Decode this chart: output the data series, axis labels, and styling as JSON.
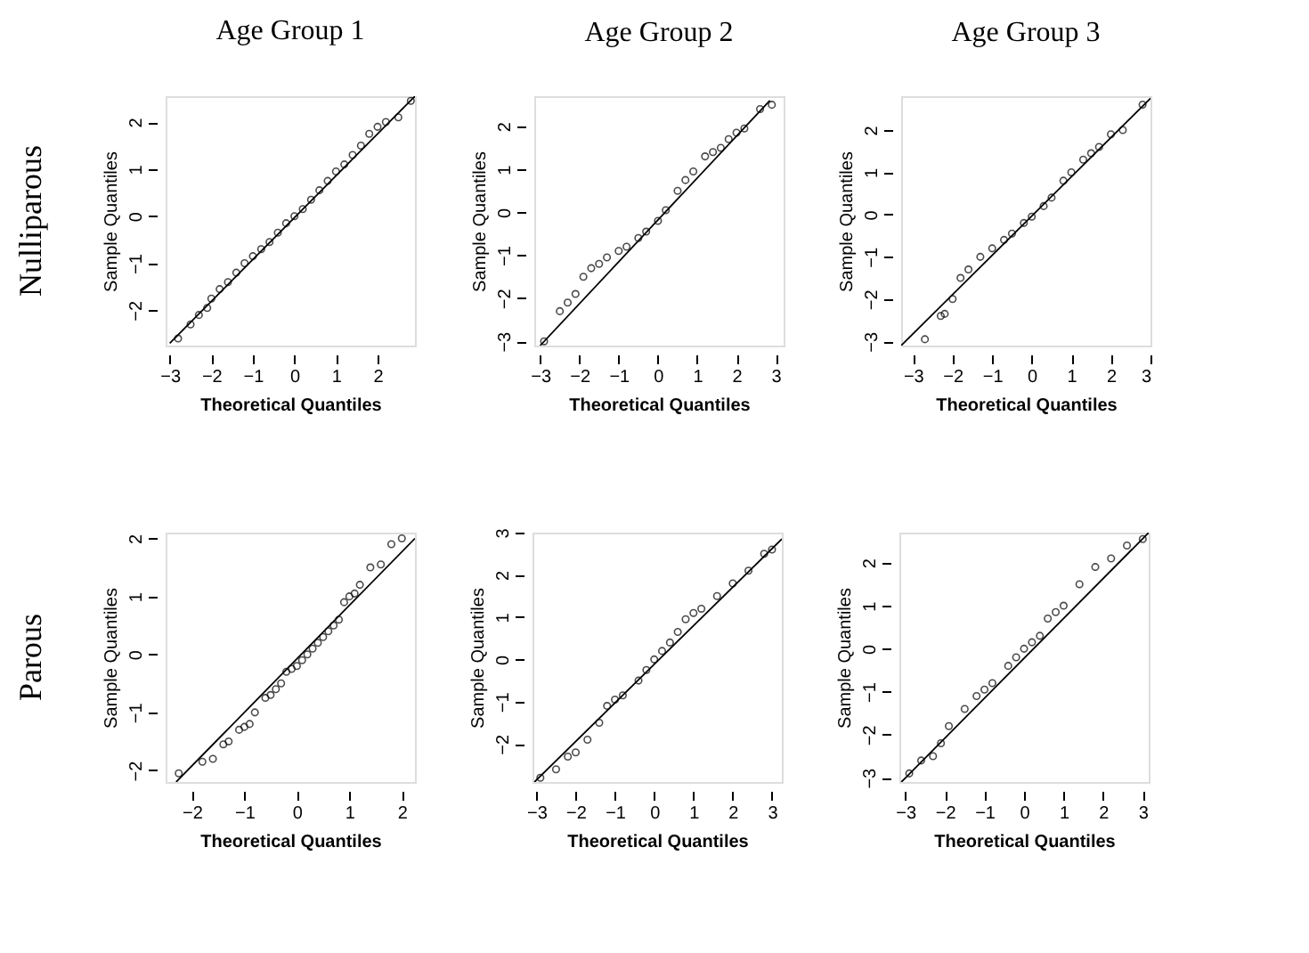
{
  "chart_data": [
    {
      "type": "scatter",
      "title": "Age Group 1",
      "xlabel": "Theoretical Quantiles",
      "ylabel": "Sample Quantiles",
      "annotations": [
        "Nulliparous"
      ],
      "xlim": [
        -3.1,
        2.9
      ],
      "ylim": [
        -2.75,
        2.55
      ],
      "xticks": [
        -3,
        -2,
        -1,
        0,
        1,
        2
      ],
      "yticks": [
        -2,
        -1,
        0,
        1,
        2
      ],
      "grid": false,
      "series": [
        {
          "color": "#000000",
          "marker": "circle",
          "x": [
            -2.8,
            -2.5,
            -2.3,
            -2.1,
            -2.0,
            -1.8,
            -1.6,
            -1.4,
            -1.2,
            -1.0,
            -0.8,
            -0.6,
            -0.4,
            -0.2,
            0.0,
            0.2,
            0.4,
            0.6,
            0.8,
            1.0,
            1.2,
            1.4,
            1.6,
            1.8,
            2.0,
            2.2,
            2.5,
            2.8
          ],
          "values": [
            -2.6,
            -2.3,
            -2.1,
            -1.95,
            -1.75,
            -1.55,
            -1.4,
            -1.2,
            -1.0,
            -0.85,
            -0.7,
            -0.55,
            -0.35,
            -0.15,
            0.0,
            0.15,
            0.35,
            0.55,
            0.75,
            0.95,
            1.1,
            1.3,
            1.5,
            1.75,
            1.9,
            2.0,
            2.1,
            2.45
          ]
        },
        {
          "type": "line",
          "color": "#000000",
          "marker": "none",
          "x": [
            -3.0,
            2.9
          ],
          "values": [
            -2.7,
            2.55
          ]
        }
      ]
    },
    {
      "type": "scatter",
      "title": "Age Group 2",
      "xlabel": "Theoretical Quantiles",
      "ylabel": "Sample Quantiles",
      "xlim": [
        -3.15,
        3.2
      ],
      "ylim": [
        -3.1,
        2.7
      ],
      "xticks": [
        -3,
        -2,
        -1,
        0,
        1,
        2,
        3
      ],
      "yticks": [
        -3,
        -2,
        -1,
        0,
        1,
        2
      ],
      "grid": false,
      "series": [
        {
          "color": "#000000",
          "marker": "circle",
          "x": [
            -2.9,
            -2.5,
            -2.3,
            -2.1,
            -1.9,
            -1.7,
            -1.5,
            -1.3,
            -1.0,
            -0.8,
            -0.5,
            -0.3,
            0.0,
            0.2,
            0.5,
            0.7,
            0.9,
            1.2,
            1.4,
            1.6,
            1.8,
            2.0,
            2.2,
            2.6,
            2.9
          ],
          "values": [
            -3.0,
            -2.3,
            -2.1,
            -1.9,
            -1.5,
            -1.3,
            -1.2,
            -1.05,
            -0.9,
            -0.8,
            -0.6,
            -0.45,
            -0.2,
            0.05,
            0.5,
            0.75,
            0.95,
            1.3,
            1.4,
            1.5,
            1.7,
            1.85,
            1.95,
            2.4,
            2.5
          ]
        },
        {
          "type": "line",
          "color": "#000000",
          "marker": "none",
          "x": [
            -3.0,
            2.85
          ],
          "values": [
            -3.1,
            2.6
          ]
        }
      ]
    },
    {
      "type": "scatter",
      "title": "Age Group 3",
      "xlabel": "Theoretical Quantiles",
      "ylabel": "Sample Quantiles",
      "xlim": [
        -3.3,
        3.0
      ],
      "ylim": [
        -3.1,
        2.8
      ],
      "xticks": [
        -3,
        -2,
        -1,
        0,
        1,
        2,
        3
      ],
      "yticks": [
        -3,
        -2,
        -1,
        0,
        1,
        2
      ],
      "grid": false,
      "series": [
        {
          "color": "#000000",
          "marker": "circle",
          "x": [
            -2.7,
            -2.3,
            -2.2,
            -2.0,
            -1.8,
            -1.6,
            -1.3,
            -1.0,
            -0.7,
            -0.5,
            -0.2,
            0.0,
            0.3,
            0.5,
            0.8,
            1.0,
            1.3,
            1.5,
            1.7,
            2.0,
            2.3,
            2.8
          ],
          "values": [
            -2.95,
            -2.4,
            -2.35,
            -2.0,
            -1.5,
            -1.3,
            -1.0,
            -0.8,
            -0.6,
            -0.45,
            -0.2,
            -0.05,
            0.2,
            0.4,
            0.8,
            1.0,
            1.3,
            1.45,
            1.6,
            1.9,
            2.0,
            2.6
          ]
        },
        {
          "type": "line",
          "color": "#000000",
          "marker": "none",
          "x": [
            -3.3,
            3.0
          ],
          "values": [
            -3.1,
            2.75
          ]
        }
      ]
    },
    {
      "type": "scatter",
      "xlabel": "Theoretical Quantiles",
      "ylabel": "Sample Quantiles",
      "annotations": [
        "Parous"
      ],
      "xlim": [
        -2.5,
        2.25
      ],
      "ylim": [
        -2.2,
        2.1
      ],
      "xticks": [
        -2,
        -1,
        0,
        1,
        2
      ],
      "yticks": [
        -2,
        -1,
        0,
        1,
        2
      ],
      "grid": false,
      "series": [
        {
          "color": "#000000",
          "marker": "circle",
          "x": [
            -2.25,
            -1.8,
            -1.6,
            -1.4,
            -1.3,
            -1.1,
            -1.0,
            -0.9,
            -0.8,
            -0.6,
            -0.5,
            -0.4,
            -0.3,
            -0.2,
            -0.1,
            0.0,
            0.1,
            0.2,
            0.3,
            0.4,
            0.5,
            0.6,
            0.7,
            0.8,
            0.9,
            1.0,
            1.1,
            1.2,
            1.4,
            1.6,
            1.8,
            2.0
          ],
          "values": [
            -2.05,
            -1.85,
            -1.8,
            -1.55,
            -1.5,
            -1.3,
            -1.25,
            -1.2,
            -1.0,
            -0.75,
            -0.7,
            -0.6,
            -0.5,
            -0.3,
            -0.25,
            -0.2,
            -0.1,
            0.0,
            0.1,
            0.2,
            0.3,
            0.4,
            0.5,
            0.6,
            0.9,
            1.0,
            1.05,
            1.2,
            1.5,
            1.55,
            1.9,
            2.0
          ]
        },
        {
          "type": "line",
          "color": "#000000",
          "marker": "none",
          "x": [
            -2.3,
            2.25
          ],
          "values": [
            -2.2,
            2.0
          ]
        }
      ]
    },
    {
      "type": "scatter",
      "xlabel": "Theoretical Quantiles",
      "ylabel": "Sample Quantiles",
      "xlim": [
        -3.1,
        3.25
      ],
      "ylim": [
        -2.9,
        3.0
      ],
      "xticks": [
        -3,
        -2,
        -1,
        0,
        1,
        2,
        3
      ],
      "yticks": [
        -2,
        -1,
        0,
        1,
        2,
        3
      ],
      "grid": false,
      "series": [
        {
          "color": "#000000",
          "marker": "circle",
          "x": [
            -2.9,
            -2.5,
            -2.2,
            -2.0,
            -1.7,
            -1.4,
            -1.2,
            -1.0,
            -0.8,
            -0.4,
            -0.2,
            0.0,
            0.2,
            0.4,
            0.6,
            0.8,
            1.0,
            1.2,
            1.6,
            2.0,
            2.4,
            2.8,
            3.0
          ],
          "values": [
            -2.8,
            -2.6,
            -2.3,
            -2.2,
            -1.9,
            -1.5,
            -1.1,
            -0.95,
            -0.85,
            -0.5,
            -0.25,
            0.0,
            0.2,
            0.4,
            0.65,
            0.95,
            1.1,
            1.2,
            1.5,
            1.8,
            2.1,
            2.5,
            2.6
          ]
        },
        {
          "type": "line",
          "color": "#000000",
          "marker": "none",
          "x": [
            -3.05,
            3.25
          ],
          "values": [
            -2.9,
            2.85
          ]
        }
      ]
    },
    {
      "type": "scatter",
      "xlabel": "Theoretical Quantiles",
      "ylabel": "Sample Quantiles",
      "xlim": [
        -3.15,
        3.15
      ],
      "ylim": [
        -3.1,
        2.7
      ],
      "xticks": [
        -3,
        -2,
        -1,
        0,
        1,
        2,
        3
      ],
      "yticks": [
        -3,
        -2,
        -1,
        0,
        1,
        2
      ],
      "grid": false,
      "series": [
        {
          "color": "#000000",
          "marker": "circle",
          "x": [
            -2.9,
            -2.6,
            -2.3,
            -2.1,
            -1.9,
            -1.5,
            -1.2,
            -1.0,
            -0.8,
            -0.4,
            -0.2,
            0.0,
            0.2,
            0.4,
            0.6,
            0.8,
            1.0,
            1.4,
            1.8,
            2.2,
            2.6,
            3.0
          ],
          "values": [
            -2.9,
            -2.6,
            -2.5,
            -2.2,
            -1.8,
            -1.4,
            -1.1,
            -0.95,
            -0.8,
            -0.4,
            -0.2,
            0.0,
            0.15,
            0.3,
            0.7,
            0.85,
            1.0,
            1.5,
            1.9,
            2.1,
            2.4,
            2.55
          ]
        },
        {
          "type": "line",
          "color": "#000000",
          "marker": "none",
          "x": [
            -3.1,
            3.15
          ],
          "values": [
            -3.1,
            2.7
          ]
        }
      ]
    }
  ]
}
